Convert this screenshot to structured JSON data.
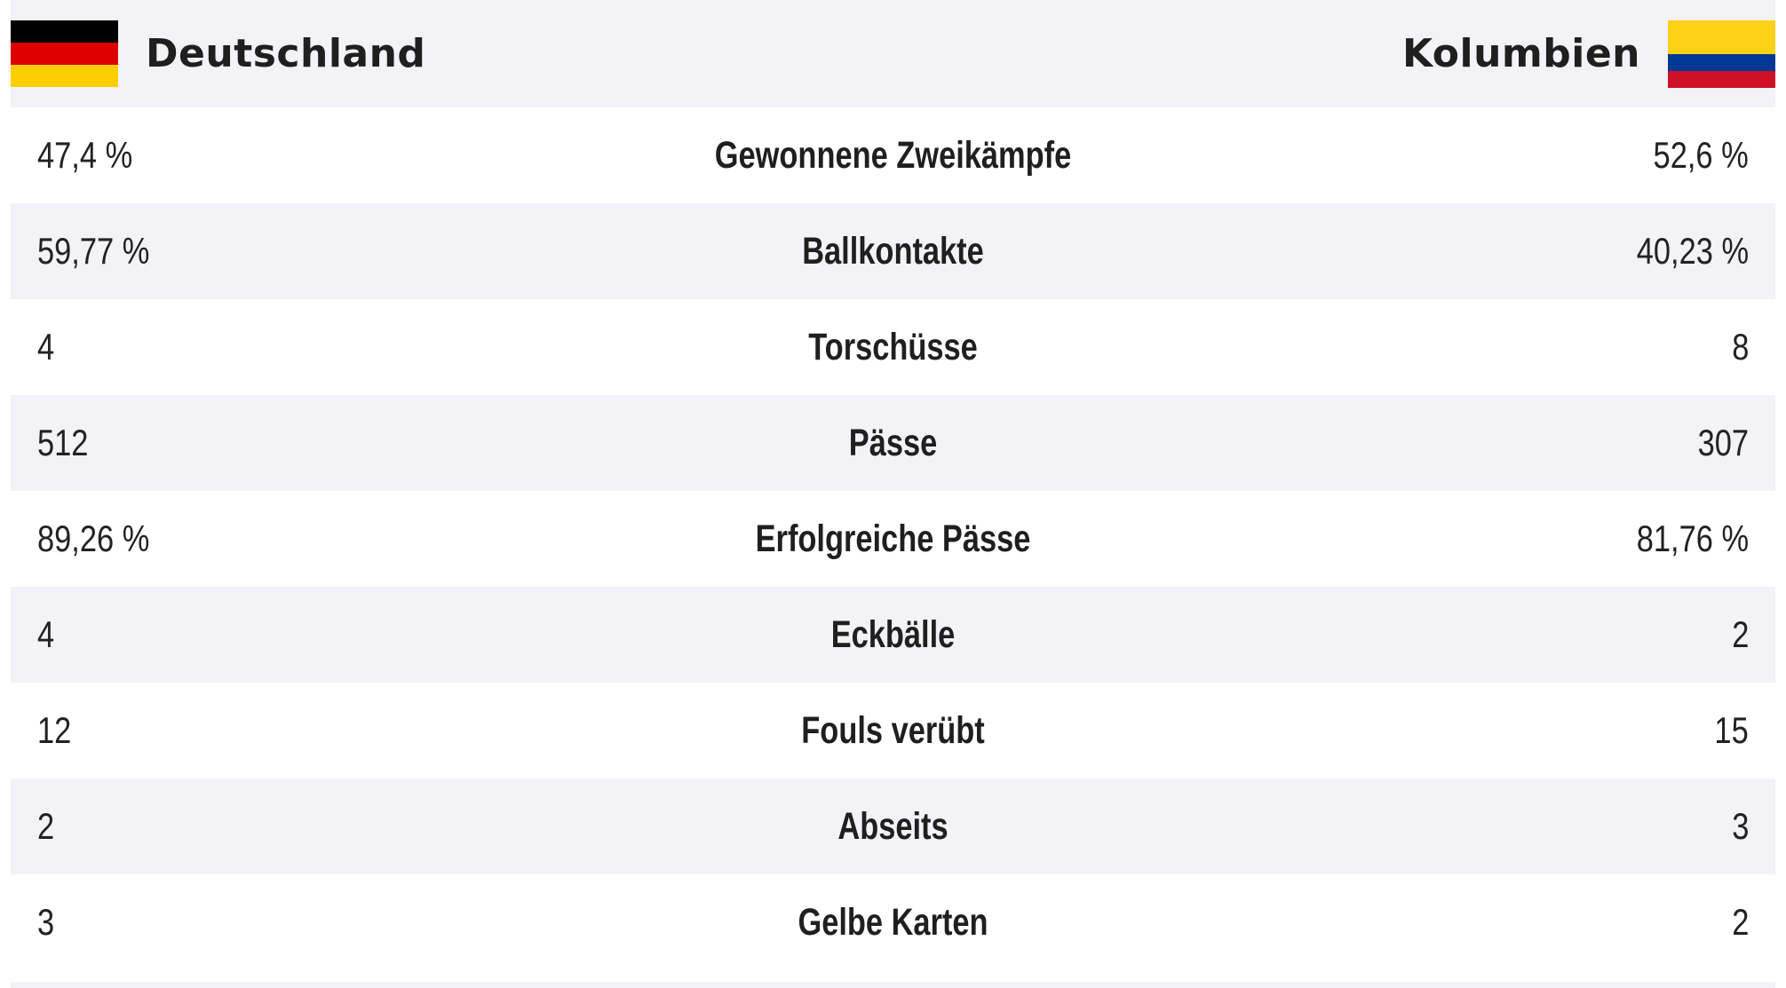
{
  "header": {
    "home_team": {
      "name": "Deutschland",
      "flag_icon": "germany-flag-icon",
      "flag_colors": [
        "#000000",
        "#dd0000",
        "#ffce00"
      ]
    },
    "away_team": {
      "name": "Kolumbien",
      "flag_icon": "colombia-flag-icon",
      "flag_colors": [
        "#fcd116",
        "#003893",
        "#ce1126"
      ]
    }
  },
  "stats": [
    {
      "label": "Gewonnene Zweikämpfe",
      "home": "47,4 %",
      "away": "52,6 %"
    },
    {
      "label": "Ballkontakte",
      "home": "59,77 %",
      "away": "40,23 %"
    },
    {
      "label": "Torschüsse",
      "home": "4",
      "away": "8"
    },
    {
      "label": "Pässe",
      "home": "512",
      "away": "307"
    },
    {
      "label": "Erfolgreiche Pässe",
      "home": "89,26 %",
      "away": "81,76 %"
    },
    {
      "label": "Eckbälle",
      "home": "4",
      "away": "2"
    },
    {
      "label": "Fouls verübt",
      "home": "12",
      "away": "15"
    },
    {
      "label": "Abseits",
      "home": "2",
      "away": "3"
    },
    {
      "label": "Gelbe Karten",
      "home": "3",
      "away": "2"
    }
  ],
  "colors": {
    "header_background": "#f3f3f7",
    "row_alt_background": "#f3f3f7",
    "row_background": "#ffffff",
    "text": "#1f1f1f"
  }
}
